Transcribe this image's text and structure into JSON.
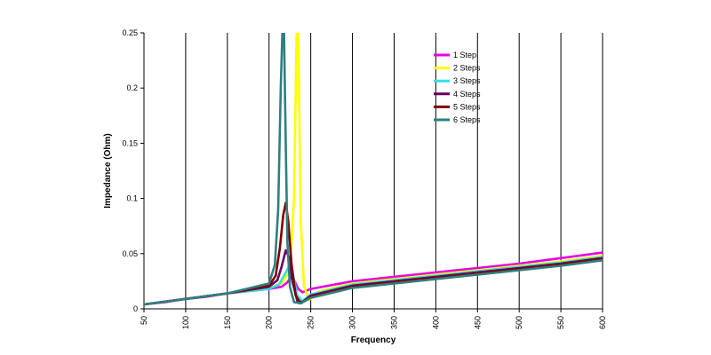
{
  "chart_data": {
    "type": "line",
    "title": "",
    "xlabel": "Frequency",
    "ylabel": "Impedance (Ohm)",
    "xlim": [
      50,
      600
    ],
    "ylim": [
      0,
      0.25
    ],
    "x_ticks": [
      "50",
      "100",
      "150",
      "200",
      "250",
      "300",
      "350",
      "400",
      "450",
      "500",
      "550",
      "600"
    ],
    "y_ticks": [
      "0",
      "0.05",
      "0.1",
      "0.15",
      "0.2",
      "0.25"
    ],
    "grid": "vertical",
    "legend_position": "top-right",
    "series": [
      {
        "name": "1 Step",
        "color": "#e600e6",
        "points": [
          [
            50,
            0.004
          ],
          [
            75,
            0.006
          ],
          [
            100,
            0.009
          ],
          [
            125,
            0.011
          ],
          [
            150,
            0.014
          ],
          [
            175,
            0.016
          ],
          [
            200,
            0.018
          ],
          [
            215,
            0.02
          ],
          [
            222,
            0.024
          ],
          [
            227,
            0.03
          ],
          [
            230,
            0.026
          ],
          [
            235,
            0.018
          ],
          [
            240,
            0.015
          ],
          [
            250,
            0.018
          ],
          [
            300,
            0.025
          ],
          [
            350,
            0.029
          ],
          [
            400,
            0.033
          ],
          [
            450,
            0.037
          ],
          [
            500,
            0.041
          ],
          [
            550,
            0.046
          ],
          [
            600,
            0.051
          ]
        ]
      },
      {
        "name": "2 Steps",
        "color": "#ffff00",
        "points": [
          [
            50,
            0.004
          ],
          [
            100,
            0.009
          ],
          [
            150,
            0.014
          ],
          [
            200,
            0.019
          ],
          [
            215,
            0.023
          ],
          [
            225,
            0.035
          ],
          [
            230,
            0.1
          ],
          [
            233,
            0.25
          ],
          [
            235,
            0.25
          ],
          [
            238,
            0.08
          ],
          [
            242,
            0.02
          ],
          [
            248,
            0.008
          ],
          [
            260,
            0.016
          ],
          [
            300,
            0.023
          ],
          [
            350,
            0.027
          ],
          [
            400,
            0.031
          ],
          [
            450,
            0.035
          ],
          [
            500,
            0.039
          ],
          [
            550,
            0.043
          ],
          [
            600,
            0.048
          ]
        ]
      },
      {
        "name": "3 Steps",
        "color": "#33e0e0",
        "points": [
          [
            50,
            0.004
          ],
          [
            100,
            0.009
          ],
          [
            150,
            0.014
          ],
          [
            200,
            0.018
          ],
          [
            212,
            0.022
          ],
          [
            220,
            0.033
          ],
          [
            225,
            0.04
          ],
          [
            229,
            0.03
          ],
          [
            234,
            0.012
          ],
          [
            240,
            0.007
          ],
          [
            250,
            0.013
          ],
          [
            300,
            0.022
          ],
          [
            350,
            0.026
          ],
          [
            400,
            0.03
          ],
          [
            450,
            0.034
          ],
          [
            500,
            0.038
          ],
          [
            550,
            0.042
          ],
          [
            600,
            0.047
          ]
        ]
      },
      {
        "name": "4 Steps",
        "color": "#660066",
        "points": [
          [
            50,
            0.004
          ],
          [
            100,
            0.009
          ],
          [
            150,
            0.014
          ],
          [
            200,
            0.02
          ],
          [
            210,
            0.026
          ],
          [
            215,
            0.038
          ],
          [
            220,
            0.053
          ],
          [
            224,
            0.047
          ],
          [
            228,
            0.025
          ],
          [
            234,
            0.007
          ],
          [
            240,
            0.006
          ],
          [
            250,
            0.012
          ],
          [
            300,
            0.021
          ],
          [
            350,
            0.025
          ],
          [
            400,
            0.029
          ],
          [
            450,
            0.033
          ],
          [
            500,
            0.037
          ],
          [
            550,
            0.041
          ],
          [
            600,
            0.046
          ]
        ]
      },
      {
        "name": "5 Steps",
        "color": "#800000",
        "points": [
          [
            50,
            0.004
          ],
          [
            100,
            0.009
          ],
          [
            150,
            0.014
          ],
          [
            200,
            0.021
          ],
          [
            208,
            0.03
          ],
          [
            213,
            0.055
          ],
          [
            217,
            0.085
          ],
          [
            220,
            0.096
          ],
          [
            223,
            0.08
          ],
          [
            227,
            0.04
          ],
          [
            232,
            0.012
          ],
          [
            238,
            0.005
          ],
          [
            250,
            0.011
          ],
          [
            300,
            0.02
          ],
          [
            350,
            0.024
          ],
          [
            400,
            0.028
          ],
          [
            450,
            0.032
          ],
          [
            500,
            0.036
          ],
          [
            550,
            0.04
          ],
          [
            600,
            0.045
          ]
        ]
      },
      {
        "name": "6 Steps",
        "color": "#2e8080",
        "points": [
          [
            50,
            0.004
          ],
          [
            100,
            0.009
          ],
          [
            150,
            0.014
          ],
          [
            200,
            0.023
          ],
          [
            207,
            0.04
          ],
          [
            211,
            0.09
          ],
          [
            214,
            0.2
          ],
          [
            216,
            0.25
          ],
          [
            218,
            0.25
          ],
          [
            220,
            0.15
          ],
          [
            222,
            0.06
          ],
          [
            225,
            0.02
          ],
          [
            230,
            0.006
          ],
          [
            238,
            0.005
          ],
          [
            250,
            0.01
          ],
          [
            300,
            0.019
          ],
          [
            350,
            0.023
          ],
          [
            400,
            0.027
          ],
          [
            450,
            0.031
          ],
          [
            500,
            0.035
          ],
          [
            550,
            0.039
          ],
          [
            600,
            0.044
          ]
        ]
      }
    ]
  }
}
